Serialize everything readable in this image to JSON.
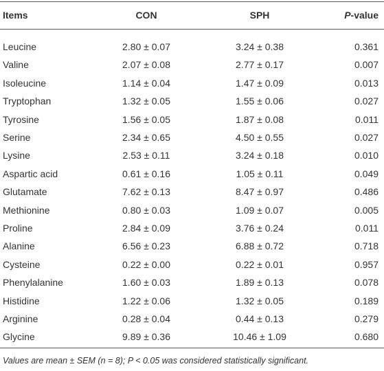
{
  "table": {
    "header": [
      "Items",
      "CON",
      "SPH",
      {
        "emphasis": "P",
        "text": "-value"
      }
    ],
    "rows": [
      [
        "Leucine",
        "2.80 ± 0.07",
        "3.24 ± 0.38",
        "0.361"
      ],
      [
        "Valine",
        "2.07 ± 0.08",
        "2.77 ± 0.17",
        "0.007"
      ],
      [
        "Isoleucine",
        "1.14 ± 0.04",
        "1.47 ± 0.09",
        "0.013"
      ],
      [
        "Tryptophan",
        "1.32 ± 0.05",
        "1.55 ± 0.06",
        "0.027"
      ],
      [
        "Tyrosine",
        "1.56 ± 0.05",
        "1.87 ± 0.08",
        "0.011"
      ],
      [
        "Serine",
        "2.34 ± 0.65",
        "4.50 ± 0.55",
        "0.027"
      ],
      [
        "Lysine",
        "2.53 ± 0.11",
        "3.24 ± 0.18",
        "0.010"
      ],
      [
        "Aspartic acid",
        "0.61 ± 0.16",
        "1.05 ± 0.11",
        "0.049"
      ],
      [
        "Glutamate",
        "7.62 ± 0.13",
        "8.47 ± 0.97",
        "0.486"
      ],
      [
        "Methionine",
        "0.80 ± 0.03",
        "1.09 ± 0.07",
        "0.005"
      ],
      [
        "Proline",
        "2.84 ± 0.09",
        "3.76 ± 0.24",
        "0.011"
      ],
      [
        "Alanine",
        "6.56 ± 0.23",
        "6.88 ± 0.72",
        "0.718"
      ],
      [
        "Cysteine",
        "0.22 ± 0.00",
        "0.22 ± 0.01",
        "0.957"
      ],
      [
        "Phenylalanine",
        "1.60 ± 0.03",
        "1.89 ± 0.13",
        "0.078"
      ],
      [
        "Histidine",
        "1.22 ± 0.06",
        "1.32 ± 0.05",
        "0.189"
      ],
      [
        "Arginine",
        "0.28 ± 0.04",
        "0.44 ± 0.13",
        "0.279"
      ],
      [
        "Glycine",
        "9.89 ± 0.36",
        "10.46 ± 1.09",
        "0.680"
      ]
    ],
    "footnote": "Values are mean ± SEM (n = 8); P < 0.05 was considered statistically significant."
  }
}
